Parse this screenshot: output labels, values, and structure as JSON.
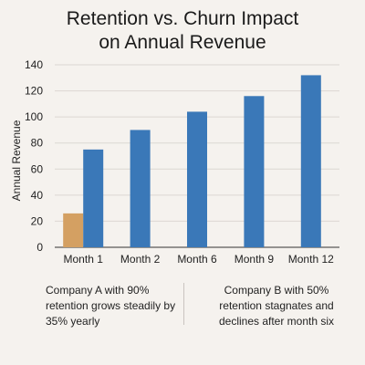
{
  "chart_data": {
    "type": "bar",
    "title_lines": [
      "Retention vs. Churn Impact",
      "on Annual Revenue"
    ],
    "xlabel": "",
    "ylabel": "Annual Revenue",
    "ylim": [
      0,
      140
    ],
    "yticks": [
      0,
      20,
      40,
      60,
      80,
      100,
      120,
      140
    ],
    "grid": true,
    "categories": [
      "Month 1",
      "Month 2",
      "Month 6",
      "Month 9",
      "Month 12"
    ],
    "series": [
      {
        "color": "#d4a062",
        "values": [
          26,
          null,
          null,
          null,
          null
        ]
      },
      {
        "color": "#3a78b8",
        "values": [
          75,
          90,
          104,
          116,
          132
        ]
      }
    ]
  },
  "captions": {
    "company_a": "Company A with 90% retention grows steadily by 35% yearly",
    "company_b": "Company B with 50% retention stagnates and declines after month six"
  }
}
